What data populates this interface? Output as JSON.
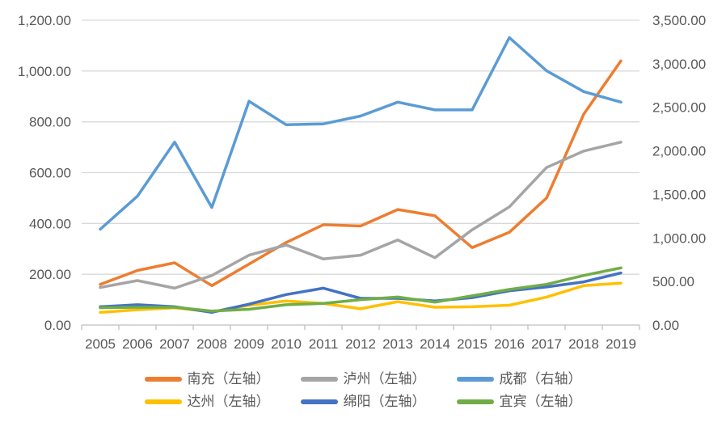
{
  "chart_data": {
    "type": "line",
    "title": "",
    "categories": [
      "2005",
      "2006",
      "2007",
      "2008",
      "2009",
      "2010",
      "2011",
      "2012",
      "2013",
      "2014",
      "2015",
      "2016",
      "2017",
      "2018",
      "2019"
    ],
    "y_left": {
      "min": 0,
      "max": 1200,
      "step": 200,
      "tick_labels": [
        "0.00",
        "200.00",
        "400.00",
        "600.00",
        "800.00",
        "1,000.00",
        "1,200.00"
      ]
    },
    "y_right": {
      "min": 0,
      "max": 3500,
      "step": 500,
      "tick_labels": [
        "0.00",
        "500.00",
        "1,000.00",
        "1,500.00",
        "2,000.00",
        "2,500.00",
        "3,000.00",
        "3,500.00"
      ]
    },
    "grid": true,
    "legend_position": "bottom",
    "series": [
      {
        "key": "nanchong",
        "name": "南充（左轴）",
        "axis": "left",
        "color": "#ED7D31",
        "values": [
          160,
          215,
          245,
          155,
          240,
          325,
          395,
          390,
          455,
          430,
          305,
          365,
          500,
          830,
          1040
        ]
      },
      {
        "key": "luzhou",
        "name": "泸州（左轴）",
        "axis": "left",
        "color": "#A5A5A5",
        "values": [
          148,
          175,
          145,
          195,
          275,
          315,
          260,
          275,
          335,
          265,
          375,
          465,
          620,
          685,
          720
        ]
      },
      {
        "key": "chengdu",
        "name": "成都（右轴）",
        "axis": "right",
        "color": "#5B9BD5",
        "values": [
          1100,
          1480,
          2100,
          1350,
          2570,
          2300,
          2310,
          2400,
          2560,
          2470,
          2470,
          3300,
          2920,
          2680,
          2560
        ]
      },
      {
        "key": "dazhou",
        "name": "达州（左轴）",
        "axis": "left",
        "color": "#FFC000",
        "values": [
          50,
          60,
          68,
          52,
          78,
          95,
          85,
          64,
          92,
          70,
          72,
          78,
          110,
          155,
          165
        ]
      },
      {
        "key": "mianyang",
        "name": "绵阳（左轴）",
        "axis": "left",
        "color": "#4472C4",
        "values": [
          72,
          80,
          72,
          50,
          82,
          120,
          145,
          105,
          105,
          95,
          108,
          135,
          150,
          170,
          205
        ]
      },
      {
        "key": "yibin",
        "name": "宜宾（左轴）",
        "axis": "left",
        "color": "#70AD47",
        "values": [
          68,
          70,
          70,
          55,
          62,
          80,
          85,
          100,
          110,
          90,
          115,
          140,
          160,
          195,
          225
        ]
      }
    ],
    "style": {
      "text_color": "#595959",
      "gridline_color": "#D9D9D9",
      "axis_line_color": "#BFBFBF",
      "background": "#FFFFFF"
    }
  }
}
